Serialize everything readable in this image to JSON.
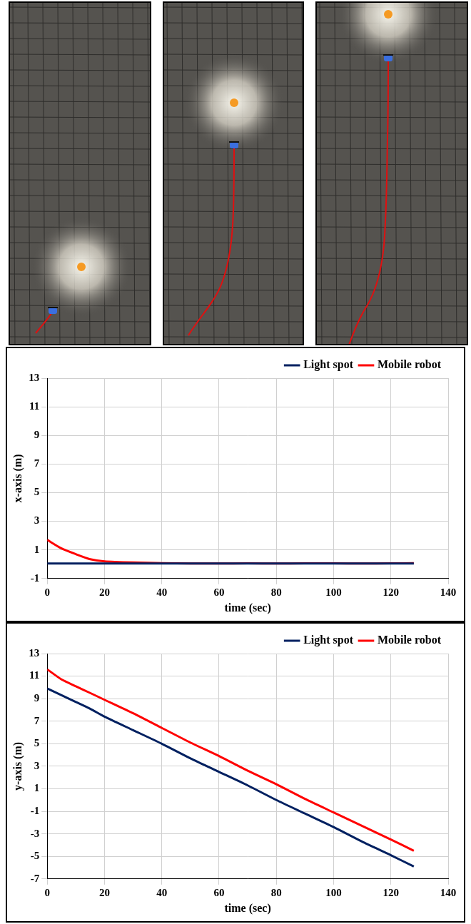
{
  "chart_data": [
    {
      "type": "line",
      "x_label": "time (sec)",
      "y_label": "x-axis (m)",
      "x": [
        0,
        5,
        10,
        15,
        20,
        30,
        40,
        50,
        60,
        70,
        80,
        90,
        100,
        110,
        120,
        128
      ],
      "series": [
        {
          "name": "Light spot",
          "color": "#002060",
          "values": [
            0.05,
            0.05,
            0.05,
            0.05,
            0.05,
            0.05,
            0.05,
            0.05,
            0.05,
            0.05,
            0.05,
            0.05,
            0.05,
            0.05,
            0.05,
            0.05
          ]
        },
        {
          "name": "Mobile robot",
          "color": "#ff0000",
          "values": [
            1.7,
            1.1,
            0.7,
            0.35,
            0.2,
            0.12,
            0.08,
            0.05,
            0.05,
            0.06,
            0.05,
            0.06,
            0.06,
            0.05,
            0.06,
            0.07
          ]
        }
      ],
      "xlim": [
        0,
        140
      ],
      "xticks": [
        0,
        20,
        40,
        60,
        80,
        100,
        120,
        140
      ],
      "ylim": [
        -1,
        13
      ],
      "yticks": [
        -1,
        1,
        3,
        5,
        7,
        9,
        11,
        13
      ],
      "grid": true,
      "legend": "upper right"
    },
    {
      "type": "line",
      "x_label": "time (sec)",
      "y_label": "y-axis (m)",
      "x": [
        0,
        5,
        10,
        15,
        20,
        30,
        40,
        50,
        60,
        70,
        80,
        90,
        100,
        110,
        120,
        128
      ],
      "series": [
        {
          "name": "Light spot",
          "color": "#002060",
          "values": [
            9.9,
            9.3,
            8.7,
            8.1,
            7.4,
            6.2,
            5.0,
            3.7,
            2.5,
            1.3,
            0.0,
            -1.2,
            -2.4,
            -3.7,
            -4.9,
            -5.9
          ]
        },
        {
          "name": "Mobile robot",
          "color": "#ff0000",
          "values": [
            11.6,
            10.7,
            10.1,
            9.5,
            8.9,
            7.7,
            6.4,
            5.1,
            3.9,
            2.6,
            1.4,
            0.1,
            -1.1,
            -2.3,
            -3.5,
            -4.5
          ]
        }
      ],
      "xlim": [
        0,
        140
      ],
      "xticks": [
        0,
        20,
        40,
        60,
        80,
        100,
        120,
        140
      ],
      "ylim": [
        -7,
        13
      ],
      "yticks": [
        -7,
        -5,
        -3,
        -1,
        1,
        3,
        5,
        7,
        9,
        11,
        13
      ],
      "grid": true,
      "legend": "upper right"
    }
  ]
}
